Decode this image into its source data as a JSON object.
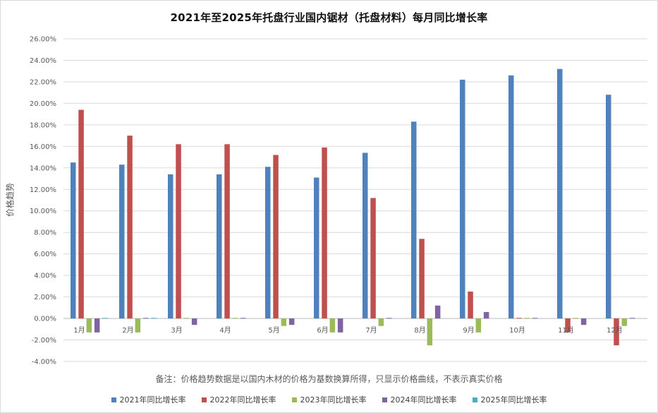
{
  "chart_data": {
    "type": "bar",
    "title": "2021年至2025年托盘行业国内锯材（托盘材料）每月同比增长率",
    "ylabel": "价格趋势",
    "note": "备注：价格趋势数据是以国内木材的价格为基数换算所得，只显示价格曲线，不表示真实价格",
    "ylim": [
      -0.04,
      0.26
    ],
    "yticks": [
      "26.00%",
      "24.00%",
      "22.00%",
      "20.00%",
      "18.00%",
      "16.00%",
      "14.00%",
      "12.00%",
      "10.00%",
      "8.00%",
      "6.00%",
      "4.00%",
      "2.00%",
      "0.00%",
      "-2.00%",
      "-4.00%"
    ],
    "grid": true,
    "legend_position": "bottom",
    "categories": [
      "1月",
      "2月",
      "3月",
      "4月",
      "5月",
      "6月",
      "7月",
      "8月",
      "9月",
      "10月",
      "11月",
      "12月"
    ],
    "series": [
      {
        "name": "2021年同比增长率",
        "color": "#4f81bd",
        "values": [
          0.145,
          0.143,
          0.134,
          0.134,
          0.141,
          0.131,
          0.154,
          0.183,
          0.222,
          0.226,
          0.232,
          0.208
        ]
      },
      {
        "name": "2022年同比增长率",
        "color": "#c0504d",
        "values": [
          0.194,
          0.17,
          0.162,
          0.162,
          0.152,
          0.159,
          0.112,
          0.074,
          0.025,
          0.0005,
          -0.013,
          -0.025
        ]
      },
      {
        "name": "2023年同比增长率",
        "color": "#9bbb59",
        "values": [
          -0.013,
          -0.013,
          0.0005,
          0.0005,
          -0.007,
          -0.013,
          -0.007,
          -0.025,
          -0.013,
          0.0005,
          0.0005,
          -0.007
        ]
      },
      {
        "name": "2024年同比增长率",
        "color": "#8064a2",
        "values": [
          -0.013,
          0.0005,
          -0.006,
          0.0005,
          -0.006,
          -0.013,
          0.0005,
          0.012,
          0.006,
          0.0005,
          -0.006,
          0.0005
        ]
      },
      {
        "name": "2025年同比增长率",
        "color": "#4bacc6",
        "values": [
          0.0005,
          0.0005,
          0,
          0,
          0,
          0,
          0,
          0,
          0,
          0,
          0,
          0
        ]
      }
    ]
  }
}
